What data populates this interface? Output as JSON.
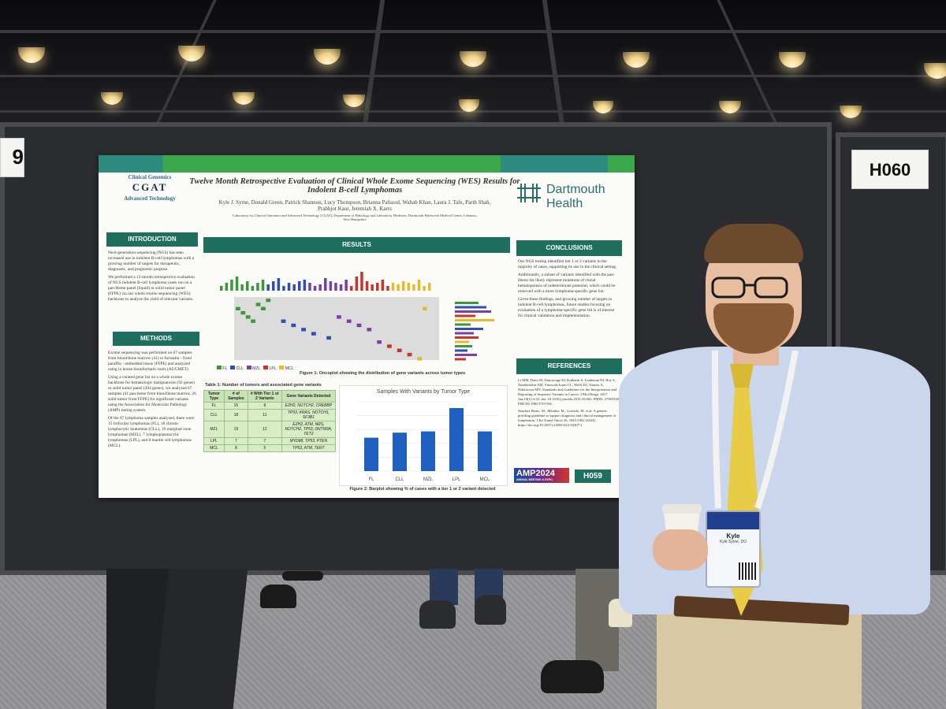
{
  "scene": {
    "booth_left_label": "9",
    "booth_right_label": "H060"
  },
  "poster": {
    "title": "Twelve Month Retrospective Evaluation of Clinical Whole Exome Sequencing (WES) Results for Indolent B-cell Lymphomas",
    "authors": "Kyle J. Syme, Donald Green, Patrick Shannon, Lucy Thompson, Brianna Palisoul, Wahab Khan, Laura J. Tafe, Parth Shah, Prabhjot Kaur, Jeremiah X. Karrs",
    "affiliation": "Laboratory for Clinical Genomics and Advanced Technology (CGAT), Department of Pathology and Laboratory Medicine, Dartmouth Hitchcock Medical Center, Lebanon, New Hampshire",
    "logo_left_top": "Clinical Genomics",
    "logo_left_mid": "CGAT",
    "logo_left_bottom": "Advanced Technology",
    "logo_right": "Dartmouth Health",
    "sections": {
      "introduction": {
        "title": "INTRODUCTION",
        "bullets": [
          "Next-generation sequencing (NGS) has seen increased use in indolent B-cell lymphomas with a growing number of targets for therapeutic, diagnostic, and prognostic purpose.",
          "We performed a 12-month retrospective evaluation of NGS indolent B-cell lymphoma cases run on a pan-Heme panel (liquid) or solid tumor panel (FFPE) via our whole exome sequencing (WES) backbone to analyze the yield of relevant variants."
        ]
      },
      "methods": {
        "title": "METHODS",
        "bullets": [
          "Exome sequencing was performed on 67 samples from blood/bone marrow (41) or formalin - fixed paraffin - embedded tissue (FFPE) and analyzed using in house bioinformatic tools (AUGMET).",
          "Using a curated gene list on a whole exome backbone for hematologic malignancies (92 genes) or solid tumor panel (204 genes), we analyzed 67 samples (41 pan-heme from blood/bone marrow, 26 solid tumor from FFPE) for significant variants using the Association for Molecular Pathology (AMP) tiering system.",
          "Of the 67 lymphoma samples analyzed, there were 15 follicular lymphomas (FL), 18 chronic lymphocytic leukemias (CLL), 19 marginal zone lymphomas (MZL), 7 lymphoplasmacytic lymphomas (LPL), and 8 mantle cell lymphomas (MCL)."
        ]
      },
      "results": {
        "title": "RESULTS",
        "fig1_caption": "Figure 1: Oncoplot showing the distribution of gene variants across tumor types",
        "table_caption": "Table 1: Number of tumors and associated gene variants",
        "fig2_caption": "Figure 2: Barplot showing % of cases with a tier 1 or 2 variant detected",
        "legend": [
          "FL",
          "CLL",
          "MZL",
          "LPL",
          "MCL"
        ]
      },
      "conclusions": {
        "title": "CONCLUSIONS",
        "bullets": [
          "Our NGS testing identified tier 1 or 2 variants in the majority of cases, supporting its use in the clinical setting.",
          "Additionally, a subset of variants identified with the pan-Heme list likely represent mutations of clonal hematopoiesis of indeterminate potential, which could be removed with a more lymphoma-specific gene list.",
          "Given these findings, and growing number of targets in indolent B-cell lymphomas, future studies focusing on evaluation of a lymphoma-specific gene list is of interest for clinical validation and implementation."
        ]
      },
      "references": {
        "title": "REFERENCES",
        "items": [
          "Li MM, Datto M, Duncavage EJ, Kulkarni S, Lindeman NI, Roy S, Tsimberidou AM, Vnencak-Jones CL, Wolff DJ, Younes A, Nikiforova MN. Standards and Guidelines for the Interpretation and Reporting of Sequence Variants in Cancer. J Mol Diagn. 2017 Jan;19(1):4-23. doi: 10.1016/j.jmoldx.2016.10.002. PMID: 27993330; PMCID: PMC5707196.",
          "Sánchez-Beato, M., Méndez, M., Guirado, M. et al. A genetic profiling guideline to support diagnosis and clinical management of lymphomas. Clin Transl Oncol 26, 1043-1062 (2024). https://doi.org/10.1007/s12094-023-03307-1"
        ]
      }
    },
    "table": {
      "headers": [
        "Tumor Type",
        "# of Samples",
        "# With Tier 1 or 2 Variants",
        "Gene Variants Detected"
      ],
      "rows": [
        [
          "FL",
          "15",
          "8",
          "EZH2, NOTCH2, CREBBP"
        ],
        [
          "CLL",
          "18",
          "11",
          "TP53, KRAS, NOTCH1, SF3B1"
        ],
        [
          "MZL",
          "19",
          "12",
          "EZH2, ATM, NRS, NOTCH2, TP53, DNTM3A, TET2"
        ],
        [
          "LPL",
          "7",
          "7",
          "MYD88, TP53, PTEN"
        ],
        [
          "MCL",
          "8",
          "5",
          "TP53, ATM, TERT"
        ]
      ]
    },
    "barplot_title": "Samples With Variants by Tumor Type",
    "amp_badge": "AMP2024",
    "amp_sub": "ANNUAL MEETING & EXPO",
    "poster_id": "H059"
  },
  "presenter_badge": {
    "name": "Kyle",
    "line2": "Kyle Syme, DO"
  },
  "chart_data": {
    "type": "bar",
    "title": "Samples With Variants by Tumor Type",
    "categories": [
      "FL",
      "CLL",
      "MZL",
      "LPL",
      "MCL"
    ],
    "values": [
      53,
      61,
      63,
      100,
      63
    ],
    "ylim": [
      0,
      110
    ],
    "color": "#1f5fbf"
  }
}
